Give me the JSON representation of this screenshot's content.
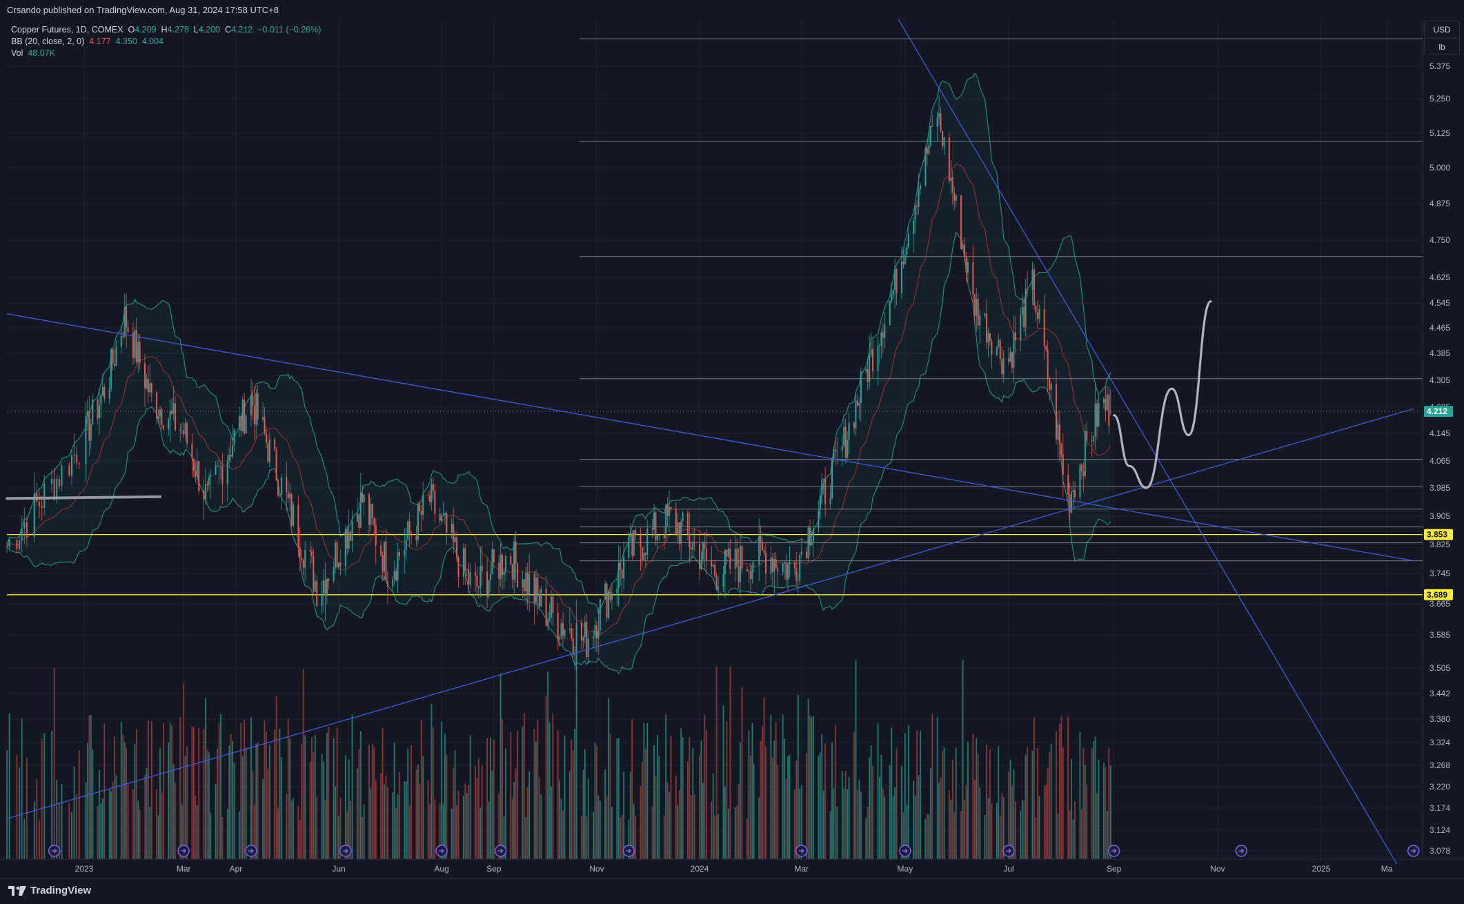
{
  "header": {
    "published": "Crsando published on TradingView.com, Aug 31, 2024 17:58 UTC+8"
  },
  "legend": {
    "symbol": "Copper Futures, 1D, COMEX",
    "ohlc": {
      "o_label": "O",
      "o": "4.209",
      "h_label": "H",
      "h": "4.278",
      "l_label": "L",
      "l": "4.200",
      "c_label": "C",
      "c": "4.212",
      "change": "−0.011 (−0.26%)"
    },
    "bb_label": "BB (20, close, 2, 0)",
    "bb_values": [
      "4.177",
      "4.350",
      "4.004"
    ],
    "vol_label": "Vol",
    "vol_value": "48.07K"
  },
  "price_axis": {
    "currency": "USD",
    "unit": "lb",
    "ticks": [
      "5.375",
      "5.250",
      "5.125",
      "5.000",
      "4.875",
      "4.750",
      "4.625",
      "4.545",
      "4.465",
      "4.385",
      "4.305",
      "4.225",
      "4.145",
      "4.065",
      "3.985",
      "3.905",
      "3.825",
      "3.745",
      "3.665",
      "3.585",
      "3.505",
      "3.442",
      "3.380",
      "3.324",
      "3.268",
      "3.220",
      "3.174",
      "3.124",
      "3.078"
    ],
    "labels": [
      {
        "text": "4.212",
        "color": "#26a69a",
        "text_color": "#ffffff",
        "value": 4.212
      },
      {
        "text": "3.853",
        "color": "#ffeb3b",
        "text_color": "#131722",
        "value": 3.853
      },
      {
        "text": "3.689",
        "color": "#ffeb3b",
        "text_color": "#131722",
        "value": 3.689
      }
    ]
  },
  "time_axis": {
    "ticks": [
      "2023",
      "Mar",
      "Apr",
      "Jun",
      "Aug",
      "Sep",
      "Nov",
      "2024",
      "Mar",
      "May",
      "Jul",
      "Sep",
      "Nov",
      "2025",
      "Ma"
    ]
  },
  "brand": "TradingView",
  "chart_data": {
    "type": "candlestick",
    "title": "Copper Futures, 1D, COMEX",
    "x_range": [
      "2022-12-01",
      "2025-04-01"
    ],
    "ylim": [
      3.05,
      5.45
    ],
    "scale": "log-like (non-uniform price ticks)",
    "grid": true,
    "horizontal_levels": [
      5.44,
      5.095,
      4.695,
      4.31,
      4.07,
      3.99,
      3.925,
      3.875,
      3.83,
      3.78
    ],
    "yellow_levels": [
      3.853,
      3.689
    ],
    "current_price": 4.212,
    "trendlines": [
      {
        "from": [
          "2022-12-01",
          4.51
        ],
        "to": [
          "2025-03-25",
          3.78
        ]
      },
      {
        "from": [
          "2022-12-01",
          3.15
        ],
        "to": [
          "2025-03-25",
          4.22
        ]
      },
      {
        "from": [
          "2024-04-25",
          5.5
        ],
        "to": [
          "2025-03-10",
          3.05
        ]
      }
    ],
    "price_path_key_points": [
      [
        "2022-12-01",
        3.82
      ],
      [
        "2022-12-25",
        4.05
      ],
      [
        "2023-01-15",
        4.3
      ],
      [
        "2023-01-25",
        4.5
      ],
      [
        "2023-02-10",
        4.25
      ],
      [
        "2023-03-01",
        4.15
      ],
      [
        "2023-03-15",
        3.95
      ],
      [
        "2023-04-10",
        4.25
      ],
      [
        "2023-05-01",
        3.95
      ],
      [
        "2023-05-20",
        3.7
      ],
      [
        "2023-06-15",
        3.95
      ],
      [
        "2023-07-01",
        3.75
      ],
      [
        "2023-07-25",
        3.95
      ],
      [
        "2023-08-20",
        3.7
      ],
      [
        "2023-09-10",
        3.8
      ],
      [
        "2023-10-01",
        3.65
      ],
      [
        "2023-10-25",
        3.57
      ],
      [
        "2023-11-20",
        3.8
      ],
      [
        "2023-12-15",
        3.9
      ],
      [
        "2024-01-10",
        3.75
      ],
      [
        "2024-02-10",
        3.8
      ],
      [
        "2024-02-25",
        3.75
      ],
      [
        "2024-03-25",
        4.1
      ],
      [
        "2024-04-25",
        4.6
      ],
      [
        "2024-05-20",
        5.2
      ],
      [
        "2024-06-10",
        4.55
      ],
      [
        "2024-06-30",
        4.35
      ],
      [
        "2024-07-15",
        4.6
      ],
      [
        "2024-08-05",
        3.95
      ],
      [
        "2024-08-25",
        4.24
      ],
      [
        "2024-08-30",
        4.21
      ]
    ],
    "volume_bars_range": [
      15000,
      110000
    ],
    "projection_path": [
      [
        "2024-09-01",
        4.2
      ],
      [
        "2024-09-10",
        4.05
      ],
      [
        "2024-09-20",
        3.985
      ],
      [
        "2024-10-05",
        4.28
      ],
      [
        "2024-10-15",
        4.14
      ],
      [
        "2024-10-28",
        4.55
      ]
    ]
  }
}
